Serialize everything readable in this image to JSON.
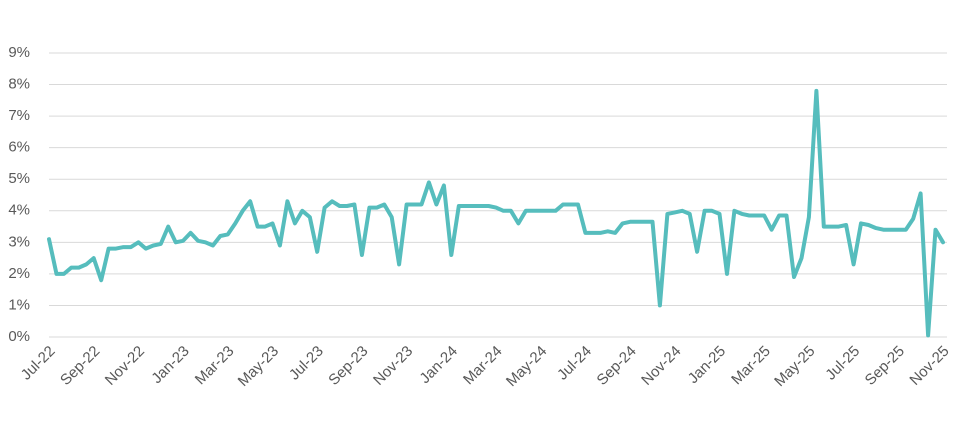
{
  "chart_data": {
    "type": "line",
    "categories": [
      "Jul-22",
      null,
      null,
      null,
      null,
      null,
      "Sep-22",
      null,
      null,
      null,
      null,
      null,
      "Nov-22",
      null,
      null,
      null,
      null,
      null,
      "Jan-23",
      null,
      null,
      null,
      null,
      null,
      "Mar-23",
      null,
      null,
      null,
      null,
      null,
      "May-23",
      null,
      null,
      null,
      null,
      null,
      "Jul-23",
      null,
      null,
      null,
      null,
      null,
      "Sep-23",
      null,
      null,
      null,
      null,
      null,
      "Nov-23",
      null,
      null,
      null,
      null,
      null,
      "Jan-24",
      null,
      null,
      null,
      null,
      null,
      "Mar-24",
      null,
      null,
      null,
      null,
      null,
      "May-24",
      null,
      null,
      null,
      null,
      null,
      "Jul-24",
      null,
      null,
      null,
      null,
      null,
      "Sep-24",
      null,
      null,
      null,
      null,
      null,
      "Nov-24",
      null,
      null,
      null,
      null,
      null,
      "Jan-25",
      null,
      null,
      null,
      null,
      null,
      "Mar-25",
      null,
      null,
      null,
      null,
      null,
      "May-25",
      null,
      null,
      null,
      null,
      null,
      "Jul-25",
      null,
      null,
      null,
      null,
      null,
      "Sep-25",
      null,
      null,
      null,
      null,
      null,
      "Nov-25"
    ],
    "series": [
      {
        "color": "#56bdbd",
        "values": [
          3.1,
          2.0,
          2.0,
          2.2,
          2.2,
          2.3,
          2.5,
          1.8,
          2.8,
          2.8,
          2.85,
          2.85,
          3.0,
          2.8,
          2.9,
          2.95,
          3.5,
          3.0,
          3.05,
          3.3,
          3.05,
          3.0,
          2.9,
          3.2,
          3.25,
          3.6,
          4.0,
          4.3,
          3.5,
          3.5,
          3.6,
          2.9,
          4.3,
          3.6,
          4.0,
          3.8,
          2.7,
          4.1,
          4.3,
          4.15,
          4.15,
          4.2,
          2.6,
          4.1,
          4.1,
          4.2,
          3.8,
          2.3,
          4.2,
          4.2,
          4.2,
          4.9,
          4.2,
          4.8,
          2.6,
          4.15,
          4.15,
          4.15,
          4.15,
          4.15,
          4.1,
          4.0,
          4.0,
          3.6,
          4.0,
          4.0,
          4.0,
          4.0,
          4.0,
          4.2,
          4.2,
          4.2,
          3.3,
          3.3,
          3.3,
          3.35,
          3.3,
          3.6,
          3.65,
          3.65,
          3.65,
          3.65,
          1.0,
          3.9,
          3.95,
          4.0,
          3.9,
          2.7,
          4.0,
          4.0,
          3.9,
          2.0,
          4.0,
          3.9,
          3.85,
          3.85,
          3.85,
          3.4,
          3.85,
          3.85,
          1.9,
          2.5,
          3.8,
          7.8,
          3.5,
          3.5,
          3.5,
          3.55,
          2.3,
          3.6,
          3.55,
          3.45,
          3.4,
          3.4,
          3.4,
          3.4,
          3.75,
          4.55,
          0.05,
          3.4,
          3.0
        ]
      }
    ],
    "ylim": [
      0,
      9
    ],
    "yticks": [
      {
        "value": 0,
        "label": "0%"
      },
      {
        "value": 1,
        "label": "1%"
      },
      {
        "value": 2,
        "label": "2%"
      },
      {
        "value": 3,
        "label": "3%"
      },
      {
        "value": 4,
        "label": "4%"
      },
      {
        "value": 5,
        "label": "5%"
      },
      {
        "value": 6,
        "label": "6%"
      },
      {
        "value": 7,
        "label": "7%"
      },
      {
        "value": 8,
        "label": "8%"
      },
      {
        "value": 9,
        "label": "9%"
      }
    ],
    "grid": true
  }
}
